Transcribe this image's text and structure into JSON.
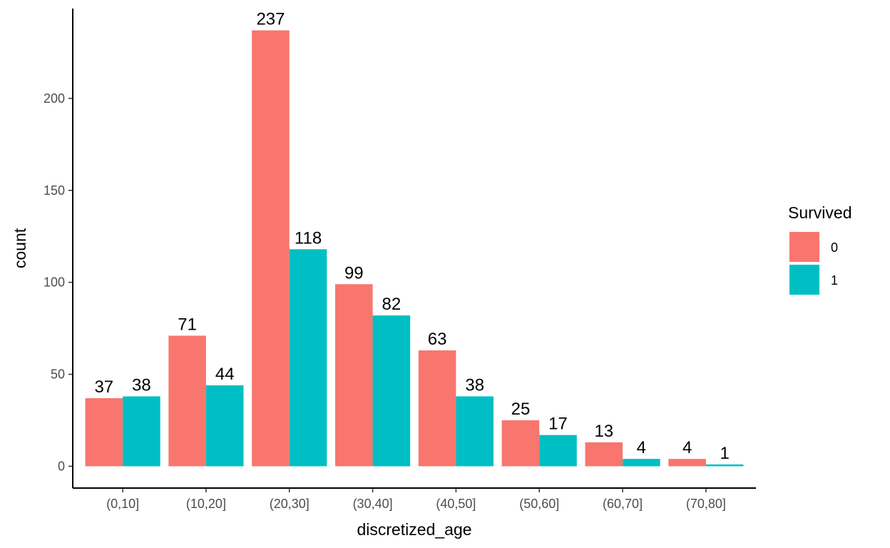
{
  "chart_data": {
    "type": "bar",
    "categories": [
      "(0,10]",
      "(10,20]",
      "(20,30]",
      "(30,40]",
      "(40,50]",
      "(50,60]",
      "(60,70]",
      "(70,80]"
    ],
    "series": [
      {
        "name": "0",
        "color": "#F8766D",
        "values": [
          37,
          71,
          237,
          99,
          63,
          25,
          13,
          4
        ]
      },
      {
        "name": "1",
        "color": "#00BFC4",
        "values": [
          38,
          44,
          118,
          82,
          38,
          17,
          4,
          1
        ]
      }
    ],
    "data_labels": true,
    "xlabel": "discretized_age",
    "ylabel": "count",
    "ylim": [
      -11.85,
      248.85
    ],
    "yticks": [
      0,
      50,
      100,
      150,
      200
    ],
    "legend": {
      "title": "Survived",
      "placement": "right"
    },
    "grid": false
  }
}
